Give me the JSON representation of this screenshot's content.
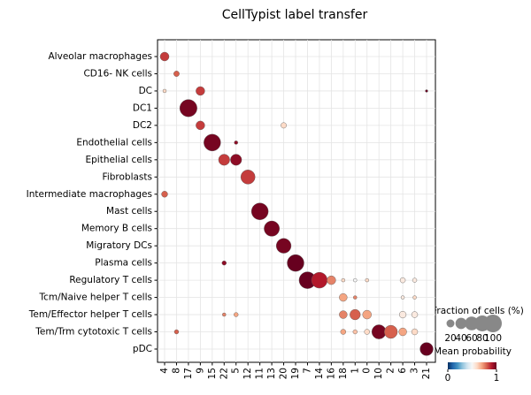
{
  "chart_data": {
    "type": "dotplot",
    "title": "CellTypist label transfer",
    "x_categories": [
      "4",
      "8",
      "17",
      "9",
      "15",
      "22",
      "5",
      "12",
      "11",
      "13",
      "20",
      "19",
      "7",
      "14",
      "16",
      "18",
      "1",
      "0",
      "10",
      "2",
      "6",
      "3",
      "21"
    ],
    "y_categories": [
      "Alveolar macrophages",
      "CD16- NK cells",
      "DC",
      "DC1",
      "DC2",
      "Endothelial cells",
      "Epithelial cells",
      "Fibroblasts",
      "Intermediate macrophages",
      "Mast cells",
      "Memory B cells",
      "Migratory DCs",
      "Plasma cells",
      "Regulatory T cells",
      "Tcm/Naive helper T cells",
      "Tem/Effector helper T cells",
      "Tem/Trm cytotoxic T cells",
      "pDC"
    ],
    "dots": [
      {
        "x": "4",
        "y": "Alveolar macrophages",
        "size": 25,
        "value": 0.85
      },
      {
        "x": "8",
        "y": "CD16- NK cells",
        "size": 10,
        "value": 0.8
      },
      {
        "x": "4",
        "y": "DC",
        "size": 4,
        "value": 0.6
      },
      {
        "x": "9",
        "y": "DC",
        "size": 25,
        "value": 0.85
      },
      {
        "x": "21",
        "y": "DC",
        "size": 2,
        "value": 1
      },
      {
        "x": "17",
        "y": "DC1",
        "size": 95,
        "value": 0.98
      },
      {
        "x": "9",
        "y": "DC2",
        "size": 25,
        "value": 0.85
      },
      {
        "x": "20",
        "y": "DC2",
        "size": 10,
        "value": 0.6
      },
      {
        "x": "15",
        "y": "Endothelial cells",
        "size": 90,
        "value": 0.98
      },
      {
        "x": "5",
        "y": "Endothelial cells",
        "size": 4,
        "value": 0.95
      },
      {
        "x": "22",
        "y": "Epithelial cells",
        "size": 40,
        "value": 0.85
      },
      {
        "x": "5",
        "y": "Epithelial cells",
        "size": 40,
        "value": 0.95
      },
      {
        "x": "12",
        "y": "Fibroblasts",
        "size": 65,
        "value": 0.85
      },
      {
        "x": "4",
        "y": "Intermediate macrophages",
        "size": 12,
        "value": 0.8
      },
      {
        "x": "11",
        "y": "Mast cells",
        "size": 90,
        "value": 0.98
      },
      {
        "x": "13",
        "y": "Memory B cells",
        "size": 75,
        "value": 0.98
      },
      {
        "x": "20",
        "y": "Migratory DCs",
        "size": 70,
        "value": 0.98
      },
      {
        "x": "19",
        "y": "Plasma cells",
        "size": 90,
        "value": 1
      },
      {
        "x": "22",
        "y": "Plasma cells",
        "size": 6,
        "value": 0.95
      },
      {
        "x": "7",
        "y": "Regulatory T cells",
        "size": 90,
        "value": 1
      },
      {
        "x": "14",
        "y": "Regulatory T cells",
        "size": 80,
        "value": 0.9
      },
      {
        "x": "16",
        "y": "Regulatory T cells",
        "size": 25,
        "value": 0.75
      },
      {
        "x": "18",
        "y": "Regulatory T cells",
        "size": 4,
        "value": 0.6
      },
      {
        "x": "1",
        "y": "Regulatory T cells",
        "size": 4,
        "value": 0.5
      },
      {
        "x": "0",
        "y": "Regulatory T cells",
        "size": 4,
        "value": 0.6
      },
      {
        "x": "6",
        "y": "Regulatory T cells",
        "size": 9,
        "value": 0.55
      },
      {
        "x": "3",
        "y": "Regulatory T cells",
        "size": 6,
        "value": 0.55
      },
      {
        "x": "18",
        "y": "Tcm/Naive helper T cells",
        "size": 20,
        "value": 0.7
      },
      {
        "x": "1",
        "y": "Tcm/Naive helper T cells",
        "size": 4,
        "value": 0.75
      },
      {
        "x": "6",
        "y": "Tcm/Naive helper T cells",
        "size": 4,
        "value": 0.55
      },
      {
        "x": "3",
        "y": "Tcm/Naive helper T cells",
        "size": 4,
        "value": 0.6
      },
      {
        "x": "22",
        "y": "Tem/Effector helper T cells",
        "size": 4,
        "value": 0.75
      },
      {
        "x": "5",
        "y": "Tem/Effector helper T cells",
        "size": 6,
        "value": 0.7
      },
      {
        "x": "18",
        "y": "Tem/Effector helper T cells",
        "size": 20,
        "value": 0.75
      },
      {
        "x": "1",
        "y": "Tem/Effector helper T cells",
        "size": 35,
        "value": 0.8
      },
      {
        "x": "0",
        "y": "Tem/Effector helper T cells",
        "size": 25,
        "value": 0.7
      },
      {
        "x": "6",
        "y": "Tem/Effector helper T cells",
        "size": 15,
        "value": 0.55
      },
      {
        "x": "3",
        "y": "Tem/Effector helper T cells",
        "size": 12,
        "value": 0.55
      },
      {
        "x": "8",
        "y": "Tem/Trm cytotoxic T cells",
        "size": 6,
        "value": 0.8
      },
      {
        "x": "18",
        "y": "Tem/Trm cytotoxic T cells",
        "size": 9,
        "value": 0.7
      },
      {
        "x": "1",
        "y": "Tem/Trm cytotoxic T cells",
        "size": 6,
        "value": 0.65
      },
      {
        "x": "0",
        "y": "Tem/Trm cytotoxic T cells",
        "size": 9,
        "value": 0.6
      },
      {
        "x": "10",
        "y": "Tem/Trm cytotoxic T cells",
        "size": 65,
        "value": 0.98
      },
      {
        "x": "2",
        "y": "Tem/Trm cytotoxic T cells",
        "size": 55,
        "value": 0.8
      },
      {
        "x": "6",
        "y": "Tem/Trm cytotoxic T cells",
        "size": 20,
        "value": 0.7
      },
      {
        "x": "3",
        "y": "Tem/Trm cytotoxic T cells",
        "size": 12,
        "value": 0.6
      },
      {
        "x": "21",
        "y": "pDC",
        "size": 55,
        "value": 1
      }
    ],
    "grid": true,
    "cmap": [
      "#053061",
      "#2166ac",
      "#4393c3",
      "#92c5de",
      "#d1e5f0",
      "#f7f7f7",
      "#fddbc7",
      "#f4a582",
      "#d6604d",
      "#b2182b",
      "#67001f"
    ],
    "size_legend": {
      "title": "Fraction of cells (%)",
      "values": [
        20,
        40,
        60,
        80,
        100
      ]
    },
    "color_legend": {
      "title": "Mean probability",
      "clim": [
        0,
        1
      ],
      "ticks": [
        0,
        1
      ]
    }
  }
}
